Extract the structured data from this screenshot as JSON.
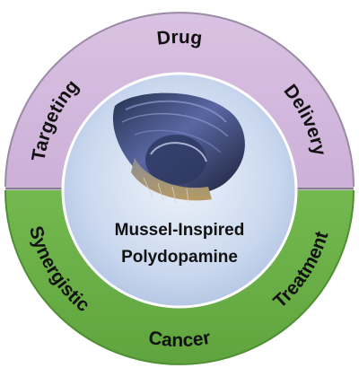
{
  "top_band": {
    "words": [
      "Targeting",
      "Drug",
      "Delivery"
    ],
    "color": "#d7bde0",
    "edge_color": "#8b7a94"
  },
  "bottom_band": {
    "words": [
      "Synergistic",
      "Cancer",
      "Treatment"
    ],
    "color": "#6db34a",
    "edge_color": "#4f8f33"
  },
  "center": {
    "line1": "Mussel-Inspired",
    "line2": "Polydopamine",
    "image": "mussel-shell-icon",
    "color_inner": "#e9eff8",
    "color_outer": "#b3c6e4"
  }
}
